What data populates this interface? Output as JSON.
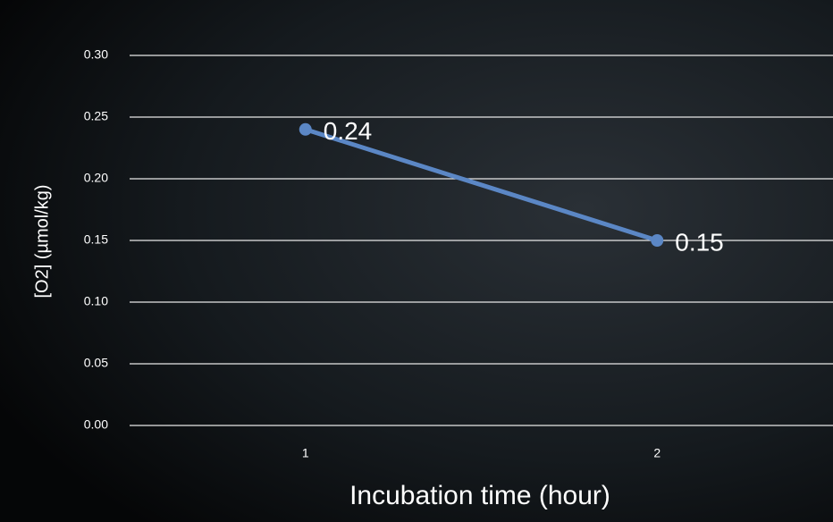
{
  "chart_data": {
    "type": "line",
    "categories": [
      "1",
      "2"
    ],
    "series": [
      {
        "name": "[O2]",
        "color": "#5b87c5",
        "values": [
          0.24,
          0.15
        ]
      }
    ],
    "x_label": "Incubation time (hour)",
    "y_label": "[O2] (µmol/kg)",
    "ylim": [
      0,
      0.3
    ],
    "yticks": [
      {
        "value": 0,
        "label": "0.00"
      },
      {
        "value": 0.05,
        "label": "0.05"
      },
      {
        "value": 0.1,
        "label": "0.10"
      },
      {
        "value": 0.15,
        "label": "0.15"
      },
      {
        "value": 0.2,
        "label": "0.20"
      },
      {
        "value": 0.25,
        "label": "0.25"
      },
      {
        "value": 0.3,
        "label": "0.30"
      }
    ],
    "grid": true
  }
}
